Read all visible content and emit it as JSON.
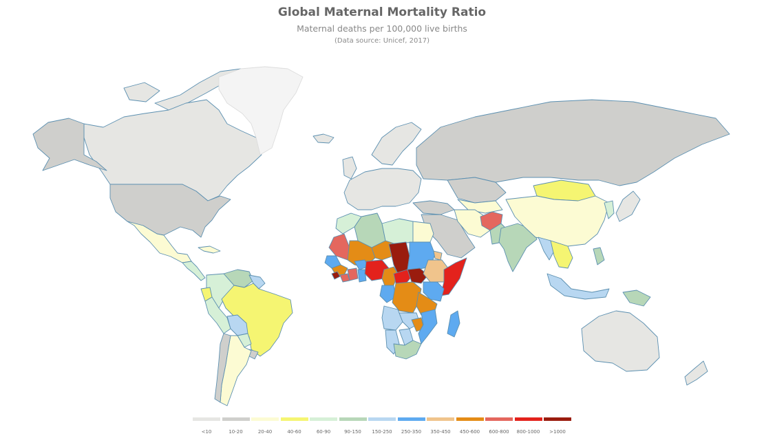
{
  "header": {
    "title": "Global Maternal Mortality Ratio",
    "subtitle": "Maternal deaths per 100,000 live births",
    "source": "(Data source: Unicef, 2017)"
  },
  "legend": [
    {
      "label": "<10",
      "color": "#e6e6e3"
    },
    {
      "label": "10-20",
      "color": "#cfcfcc"
    },
    {
      "label": "20-40",
      "color": "#fcfbd3"
    },
    {
      "label": "40-60",
      "color": "#f5f572"
    },
    {
      "label": "60-90",
      "color": "#d6f0d7"
    },
    {
      "label": "90-150",
      "color": "#b7d7b8"
    },
    {
      "label": "150-250",
      "color": "#b8d7f1"
    },
    {
      "label": "250-350",
      "color": "#5eaaf0"
    },
    {
      "label": "350-450",
      "color": "#f0c48c"
    },
    {
      "label": "450-600",
      "color": "#e48c16"
    },
    {
      "label": "600-800",
      "color": "#e4675e"
    },
    {
      "label": "800-1000",
      "color": "#e3221c"
    },
    {
      "label": ">1000",
      "color": "#9a1c0e"
    }
  ],
  "nodata_color": "#f4f4f4",
  "regions": [
    {
      "name": "canada",
      "value": "<10"
    },
    {
      "name": "alaska",
      "value": "10-20"
    },
    {
      "name": "usa",
      "value": "10-20"
    },
    {
      "name": "greenland",
      "value": "no-data"
    },
    {
      "name": "mexico",
      "value": "20-40"
    },
    {
      "name": "central-america",
      "value": "60-90"
    },
    {
      "name": "cuba",
      "value": "20-40"
    },
    {
      "name": "colombia",
      "value": "60-90"
    },
    {
      "name": "venezuela",
      "value": "90-150"
    },
    {
      "name": "guiana",
      "value": "150-250"
    },
    {
      "name": "ecuador",
      "value": "40-60"
    },
    {
      "name": "peru",
      "value": "60-90"
    },
    {
      "name": "brazil",
      "value": "40-60"
    },
    {
      "name": "bolivia",
      "value": "150-250"
    },
    {
      "name": "paraguay",
      "value": "60-90"
    },
    {
      "name": "argentina",
      "value": "20-40"
    },
    {
      "name": "chile",
      "value": "10-20"
    },
    {
      "name": "uruguay",
      "value": "10-20"
    },
    {
      "name": "iceland",
      "value": "<10"
    },
    {
      "name": "europe",
      "value": "<10"
    },
    {
      "name": "scandinavia",
      "value": "<10"
    },
    {
      "name": "uk",
      "value": "<10"
    },
    {
      "name": "russia",
      "value": "10-20"
    },
    {
      "name": "kazakhstan",
      "value": "10-20"
    },
    {
      "name": "central-asia",
      "value": "20-40"
    },
    {
      "name": "mongolia",
      "value": "40-60"
    },
    {
      "name": "china",
      "value": "20-40"
    },
    {
      "name": "japan",
      "value": "<10"
    },
    {
      "name": "korea",
      "value": "60-90"
    },
    {
      "name": "turkey",
      "value": "10-20"
    },
    {
      "name": "middle-east",
      "value": "10-20"
    },
    {
      "name": "iran",
      "value": "20-40"
    },
    {
      "name": "afghanistan",
      "value": "600-800"
    },
    {
      "name": "pakistan",
      "value": "90-150"
    },
    {
      "name": "india",
      "value": "90-150"
    },
    {
      "name": "myanmar",
      "value": "150-250"
    },
    {
      "name": "southeast-asia",
      "value": "40-60"
    },
    {
      "name": "indonesia",
      "value": "150-250"
    },
    {
      "name": "philippines",
      "value": "90-150"
    },
    {
      "name": "png",
      "value": "90-150"
    },
    {
      "name": "australia",
      "value": "<10"
    },
    {
      "name": "new-zealand",
      "value": "<10"
    },
    {
      "name": "morocco",
      "value": "60-90"
    },
    {
      "name": "algeria",
      "value": "90-150"
    },
    {
      "name": "libya",
      "value": "60-90"
    },
    {
      "name": "egypt",
      "value": "20-40"
    },
    {
      "name": "mauritania",
      "value": "600-800"
    },
    {
      "name": "mali",
      "value": "450-600"
    },
    {
      "name": "niger",
      "value": "450-600"
    },
    {
      "name": "chad",
      "value": ">1000"
    },
    {
      "name": "sudan",
      "value": "250-350"
    },
    {
      "name": "senegal",
      "value": "250-350"
    },
    {
      "name": "guinea",
      "value": "450-600"
    },
    {
      "name": "sierra-leone",
      "value": ">1000"
    },
    {
      "name": "liberia",
      "value": "600-800"
    },
    {
      "name": "ivory-coast",
      "value": "600-800"
    },
    {
      "name": "burkina-faso",
      "value": "250-350"
    },
    {
      "name": "ghana",
      "value": "250-350"
    },
    {
      "name": "nigeria",
      "value": "800-1000"
    },
    {
      "name": "cameroon",
      "value": "450-600"
    },
    {
      "name": "car",
      "value": "800-1000"
    },
    {
      "name": "south-sudan",
      "value": ">1000"
    },
    {
      "name": "ethiopia",
      "value": "350-450"
    },
    {
      "name": "eritrea",
      "value": "350-450"
    },
    {
      "name": "somalia",
      "value": "800-1000"
    },
    {
      "name": "kenya",
      "value": "250-350"
    },
    {
      "name": "gabon-congo",
      "value": "250-350"
    },
    {
      "name": "drc",
      "value": "450-600"
    },
    {
      "name": "tanzania",
      "value": "450-600"
    },
    {
      "name": "angola",
      "value": "150-250"
    },
    {
      "name": "zambia",
      "value": "150-250"
    },
    {
      "name": "mozambique",
      "value": "250-350"
    },
    {
      "name": "malawi",
      "value": "450-600"
    },
    {
      "name": "namibia",
      "value": "150-250"
    },
    {
      "name": "botswana",
      "value": "150-250"
    },
    {
      "name": "south-africa",
      "value": "90-150"
    },
    {
      "name": "madagascar",
      "value": "250-350"
    },
    {
      "name": "arctic-islands",
      "value": "<10"
    }
  ]
}
